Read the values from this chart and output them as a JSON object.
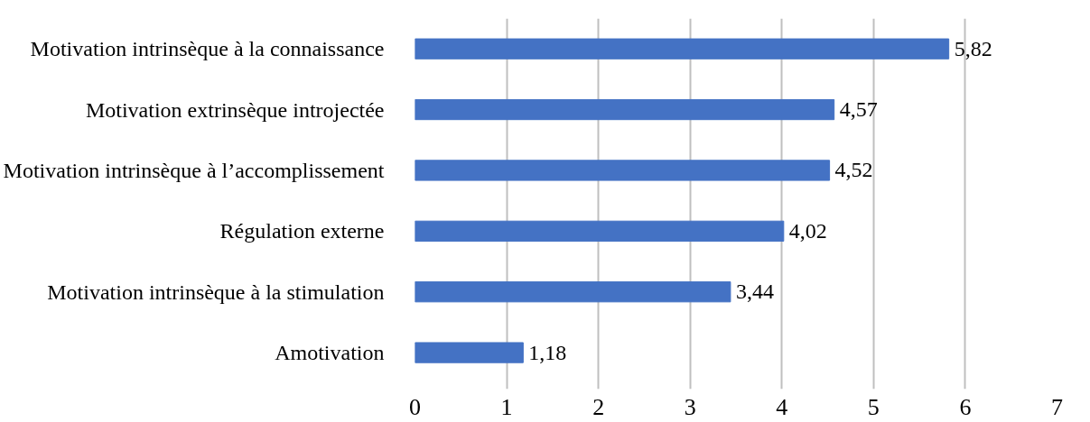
{
  "chart_data": {
    "type": "bar",
    "orientation": "horizontal",
    "categories": [
      "Motivation intrinsèque à la connaissance",
      "Motivation extrinsèque introjectée",
      "Motivation intrinsèque à l’accomplissement",
      "Régulation externe",
      "Motivation intrinsèque à la stimulation",
      "Amotivation"
    ],
    "values": [
      5.82,
      4.57,
      4.52,
      4.02,
      3.44,
      1.18
    ],
    "value_labels": [
      "5,82",
      "4,57",
      "4,52",
      "4,02",
      "3,44",
      "1,18"
    ],
    "color": "#4472c4",
    "xlim": [
      0,
      7
    ],
    "xticks": [
      0,
      1,
      2,
      3,
      4,
      5,
      6,
      7
    ],
    "grid": "x"
  }
}
